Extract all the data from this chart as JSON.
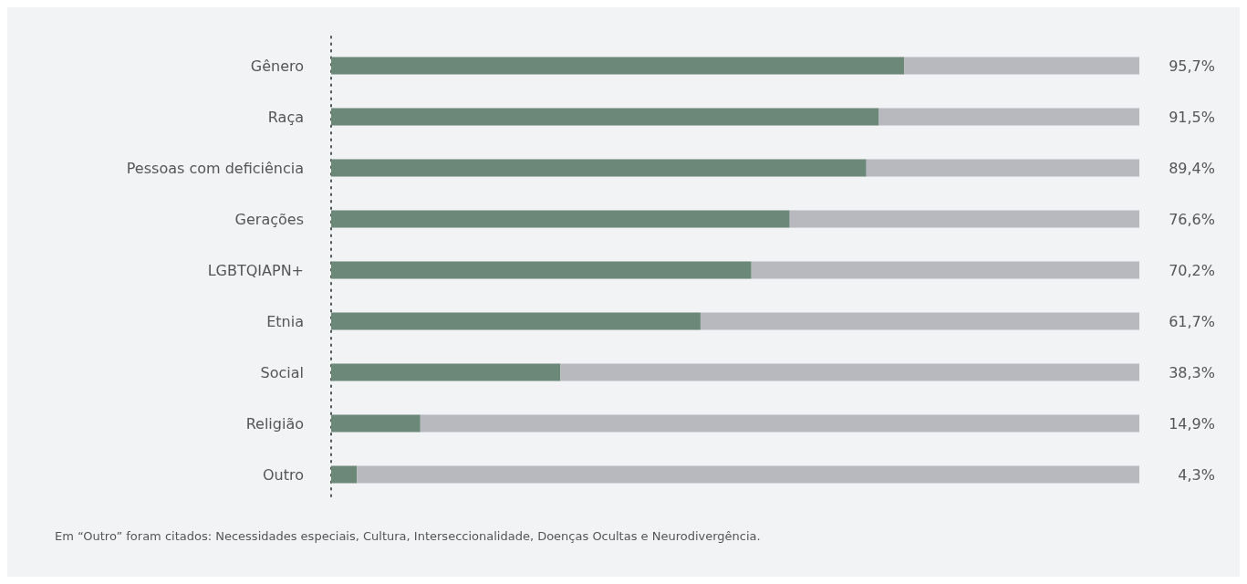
{
  "chart_data": {
    "type": "bar",
    "orientation": "horizontal",
    "stacked": true,
    "categories": [
      "Gênero",
      "Raça",
      "Pessoas com deficiência",
      "Gerações",
      "LGBTQIAPN+",
      "Etnia",
      "Social",
      "Religião",
      "Outro"
    ],
    "series": [
      {
        "color": "#6b8878",
        "values": [
          95.7,
          91.5,
          89.4,
          76.6,
          70.2,
          61.7,
          38.3,
          14.9,
          4.3
        ],
        "value_labels": [
          "95,7%",
          "91,5%",
          "89,4%",
          "76,6%",
          "70,2%",
          "61,7%",
          "38,3%",
          "14,9%",
          "4,3%"
        ]
      },
      {
        "color": "#b8b9be",
        "values": [
          39.3,
          43.5,
          45.6,
          58.4,
          64.8,
          73.3,
          96.7,
          120.1,
          130.7
        ]
      }
    ],
    "xlim": [
      0,
      135
    ],
    "tick_labels": "y",
    "annotations": [
      "Em “Outro” foram citados: Necessidades especiais, Cultura, Interseccionalidade, Doenças Ocultas e Neurodivergência."
    ]
  }
}
